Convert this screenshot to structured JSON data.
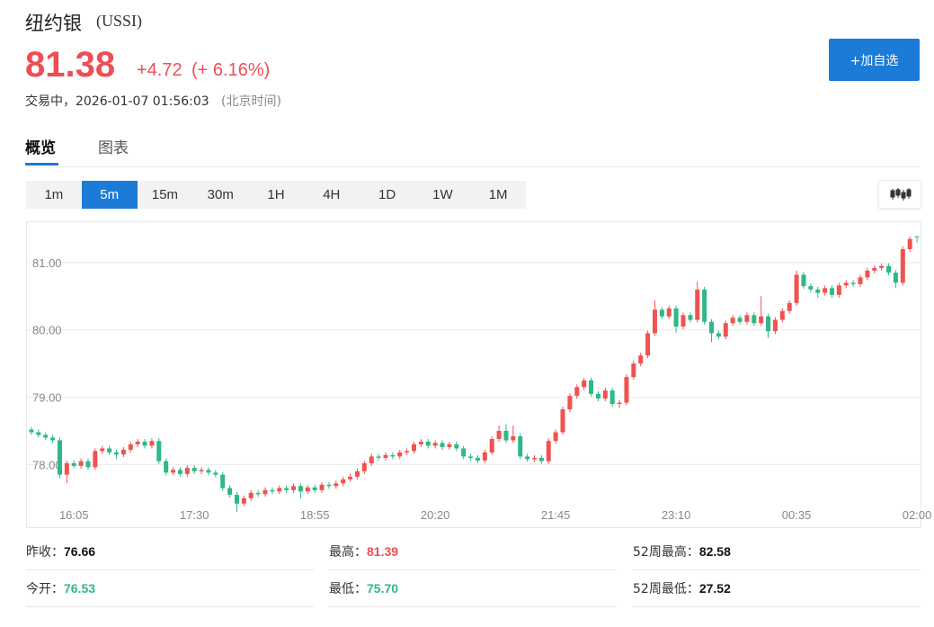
{
  "header": {
    "name": "纽约银",
    "code": "(USSI)",
    "price": "81.38",
    "change": "+4.72",
    "change_pct": "(+ 6.16%)",
    "status": "交易中，2026-01-07 01:56:03",
    "timezone": "(北京时间)",
    "button": "+加自选"
  },
  "tabs": {
    "items": [
      "概览",
      "图表"
    ],
    "active": 0
  },
  "periods": {
    "items": [
      "1m",
      "5m",
      "15m",
      "30m",
      "1H",
      "4H",
      "1D",
      "1W",
      "1M"
    ],
    "active": 1
  },
  "stats": [
    [
      {
        "label": "昨收：",
        "value": "76.66"
      },
      {
        "label": "最高：",
        "value": "81.39"
      },
      {
        "label": "52周最高：",
        "value": "82.58"
      }
    ],
    [
      {
        "label": "今开：",
        "value": "76.53"
      },
      {
        "label": "最低：",
        "value": "75.70"
      },
      {
        "label": "52周最低：",
        "value": "27.52"
      }
    ]
  ],
  "chart_data": {
    "type": "candlestick",
    "up_color": "#ef5350",
    "down_color": "#2eb886",
    "grid": true,
    "ylim": [
      77.07,
      81.6
    ],
    "yticks": [
      {
        "value": 78,
        "label": "78.00"
      },
      {
        "value": 79,
        "label": "79.00"
      },
      {
        "value": 80,
        "label": "80.00"
      },
      {
        "value": 81,
        "label": "81.00"
      }
    ],
    "categories": [
      null,
      null,
      null,
      null,
      null,
      null,
      "16:05",
      null,
      null,
      null,
      null,
      null,
      null,
      null,
      null,
      null,
      null,
      null,
      null,
      null,
      null,
      null,
      null,
      "17:30",
      null,
      null,
      null,
      null,
      null,
      null,
      null,
      null,
      null,
      null,
      null,
      null,
      null,
      null,
      null,
      null,
      "18:55",
      null,
      null,
      null,
      null,
      null,
      null,
      null,
      null,
      null,
      null,
      null,
      null,
      null,
      null,
      null,
      null,
      "20:20",
      null,
      null,
      null,
      null,
      null,
      null,
      null,
      null,
      null,
      null,
      null,
      null,
      null,
      null,
      null,
      null,
      "21:45",
      null,
      null,
      null,
      null,
      null,
      null,
      null,
      null,
      null,
      null,
      null,
      null,
      null,
      null,
      null,
      null,
      "23:10",
      null,
      null,
      null,
      null,
      null,
      null,
      null,
      null,
      null,
      null,
      null,
      null,
      null,
      null,
      null,
      null,
      "00:35",
      null,
      null,
      null,
      null,
      null,
      null,
      null,
      null,
      null,
      null,
      null,
      null,
      null,
      null,
      null,
      null,
      "02:00"
    ],
    "open": [
      78.52,
      78.48,
      78.44,
      78.4,
      78.36,
      77.85,
      78.02,
      77.98,
      78.05,
      77.96,
      78.2,
      78.24,
      78.18,
      78.15,
      78.22,
      78.3,
      78.34,
      78.28,
      78.35,
      78.05,
      77.88,
      77.92,
      77.86,
      77.95,
      77.9,
      77.92,
      77.88,
      77.85,
      77.65,
      77.55,
      77.42,
      77.5,
      77.58,
      77.56,
      77.62,
      77.6,
      77.65,
      77.62,
      77.68,
      77.6,
      77.66,
      77.62,
      77.7,
      77.68,
      77.72,
      77.78,
      77.82,
      77.9,
      78.02,
      78.12,
      78.1,
      78.14,
      78.12,
      78.18,
      78.2,
      78.3,
      78.34,
      78.28,
      78.32,
      78.26,
      78.3,
      78.24,
      78.12,
      78.1,
      78.06,
      78.18,
      78.38,
      78.5,
      78.36,
      78.42,
      78.12,
      78.08,
      78.1,
      78.05,
      78.35,
      78.48,
      78.82,
      79.02,
      79.15,
      79.25,
      79.05,
      78.98,
      79.1,
      78.9,
      78.92,
      79.3,
      79.5,
      79.62,
      79.95,
      80.3,
      80.2,
      80.32,
      80.05,
      80.22,
      80.15,
      80.6,
      80.12,
      79.95,
      79.9,
      80.1,
      80.18,
      80.12,
      80.22,
      80.1,
      80.2,
      79.98,
      80.15,
      80.28,
      80.4,
      80.82,
      80.65,
      80.6,
      80.55,
      80.62,
      80.52,
      80.66,
      80.7,
      80.68,
      80.78,
      80.88,
      80.92,
      80.95,
      80.85,
      80.7,
      81.2,
      81.39
    ],
    "high": [
      78.56,
      78.52,
      78.48,
      78.44,
      78.4,
      78.06,
      78.06,
      78.09,
      78.09,
      78.24,
      78.28,
      78.28,
      78.22,
      78.26,
      78.34,
      78.38,
      78.38,
      78.39,
      78.39,
      78.09,
      77.96,
      77.96,
      77.99,
      77.99,
      77.96,
      77.96,
      77.92,
      77.89,
      77.69,
      77.59,
      77.54,
      77.62,
      77.62,
      77.66,
      77.66,
      77.69,
      77.69,
      77.72,
      77.72,
      77.7,
      77.7,
      77.74,
      77.74,
      77.76,
      77.82,
      77.86,
      77.94,
      78.06,
      78.16,
      78.16,
      78.18,
      78.18,
      78.22,
      78.24,
      78.34,
      78.38,
      78.38,
      78.36,
      78.36,
      78.34,
      78.34,
      78.28,
      78.16,
      78.14,
      78.22,
      78.42,
      78.58,
      78.6,
      78.58,
      78.46,
      78.16,
      78.14,
      78.14,
      78.39,
      78.52,
      78.86,
      79.06,
      79.19,
      79.29,
      79.29,
      79.09,
      79.14,
      79.14,
      78.96,
      79.34,
      79.54,
      79.66,
      79.99,
      80.44,
      80.34,
      80.36,
      80.36,
      80.26,
      80.26,
      80.72,
      80.64,
      80.16,
      79.99,
      80.14,
      80.22,
      80.22,
      80.26,
      80.26,
      80.5,
      80.24,
      80.19,
      80.32,
      80.44,
      80.88,
      80.86,
      80.69,
      80.64,
      80.66,
      80.66,
      80.7,
      80.74,
      80.74,
      80.82,
      80.92,
      80.96,
      80.99,
      80.99,
      80.89,
      81.24,
      81.39,
      81.39
    ],
    "low": [
      78.44,
      78.4,
      78.36,
      78.32,
      77.8,
      77.72,
      77.94,
      77.94,
      77.92,
      77.92,
      78.16,
      78.14,
      78.08,
      78.11,
      78.18,
      78.26,
      78.24,
      78.24,
      78.01,
      77.84,
      77.84,
      77.82,
      77.82,
      77.86,
      77.86,
      77.84,
      77.81,
      77.61,
      77.51,
      77.3,
      77.38,
      77.46,
      77.52,
      77.52,
      77.56,
      77.56,
      77.58,
      77.58,
      77.5,
      77.56,
      77.58,
      77.58,
      77.64,
      77.64,
      77.68,
      77.74,
      77.78,
      77.86,
      77.98,
      78.06,
      78.06,
      78.08,
      78.08,
      78.14,
      78.16,
      78.26,
      78.24,
      78.24,
      78.22,
      78.22,
      78.2,
      78.08,
      78.06,
      78.02,
      78.02,
      78.14,
      78.34,
      78.32,
      78.32,
      78.08,
      78.04,
      78.04,
      78.01,
      78.01,
      78.31,
      78.44,
      78.78,
      78.98,
      79.11,
      79.01,
      78.94,
      78.94,
      78.86,
      78.84,
      78.88,
      79.26,
      79.46,
      79.58,
      79.91,
      80.16,
      80.16,
      79.96,
      80.01,
      80.11,
      80.11,
      80.08,
      79.82,
      79.86,
      79.86,
      80.06,
      80.08,
      80.08,
      80.06,
      80.06,
      79.88,
      79.94,
      80.11,
      80.24,
      80.36,
      80.61,
      80.56,
      80.48,
      80.51,
      80.48,
      80.48,
      80.62,
      80.64,
      80.64,
      80.74,
      80.84,
      80.88,
      80.81,
      80.62,
      80.66,
      81.16,
      81.3
    ],
    "close": [
      78.48,
      78.44,
      78.4,
      78.36,
      77.85,
      78.02,
      77.98,
      78.05,
      77.96,
      78.2,
      78.24,
      78.18,
      78.15,
      78.22,
      78.3,
      78.34,
      78.28,
      78.35,
      78.05,
      77.88,
      77.92,
      77.86,
      77.95,
      77.9,
      77.92,
      77.88,
      77.85,
      77.65,
      77.55,
      77.42,
      77.5,
      77.58,
      77.56,
      77.62,
      77.6,
      77.65,
      77.62,
      77.68,
      77.6,
      77.66,
      77.62,
      77.7,
      77.68,
      77.72,
      77.78,
      77.82,
      77.9,
      78.02,
      78.12,
      78.1,
      78.14,
      78.12,
      78.18,
      78.2,
      78.3,
      78.34,
      78.28,
      78.32,
      78.26,
      78.3,
      78.24,
      78.12,
      78.1,
      78.06,
      78.18,
      78.38,
      78.5,
      78.36,
      78.42,
      78.12,
      78.08,
      78.1,
      78.05,
      78.35,
      78.48,
      78.82,
      79.02,
      79.15,
      79.25,
      79.05,
      78.98,
      79.1,
      78.9,
      78.92,
      79.3,
      79.5,
      79.62,
      79.95,
      80.3,
      80.2,
      80.32,
      80.05,
      80.22,
      80.15,
      80.6,
      80.12,
      79.95,
      79.9,
      80.1,
      80.18,
      80.12,
      80.22,
      80.1,
      80.2,
      79.98,
      80.15,
      80.28,
      80.4,
      80.82,
      80.65,
      80.6,
      80.55,
      80.62,
      80.52,
      80.66,
      80.7,
      80.68,
      80.78,
      80.88,
      80.92,
      80.95,
      80.85,
      80.7,
      81.2,
      81.35,
      81.38
    ]
  }
}
